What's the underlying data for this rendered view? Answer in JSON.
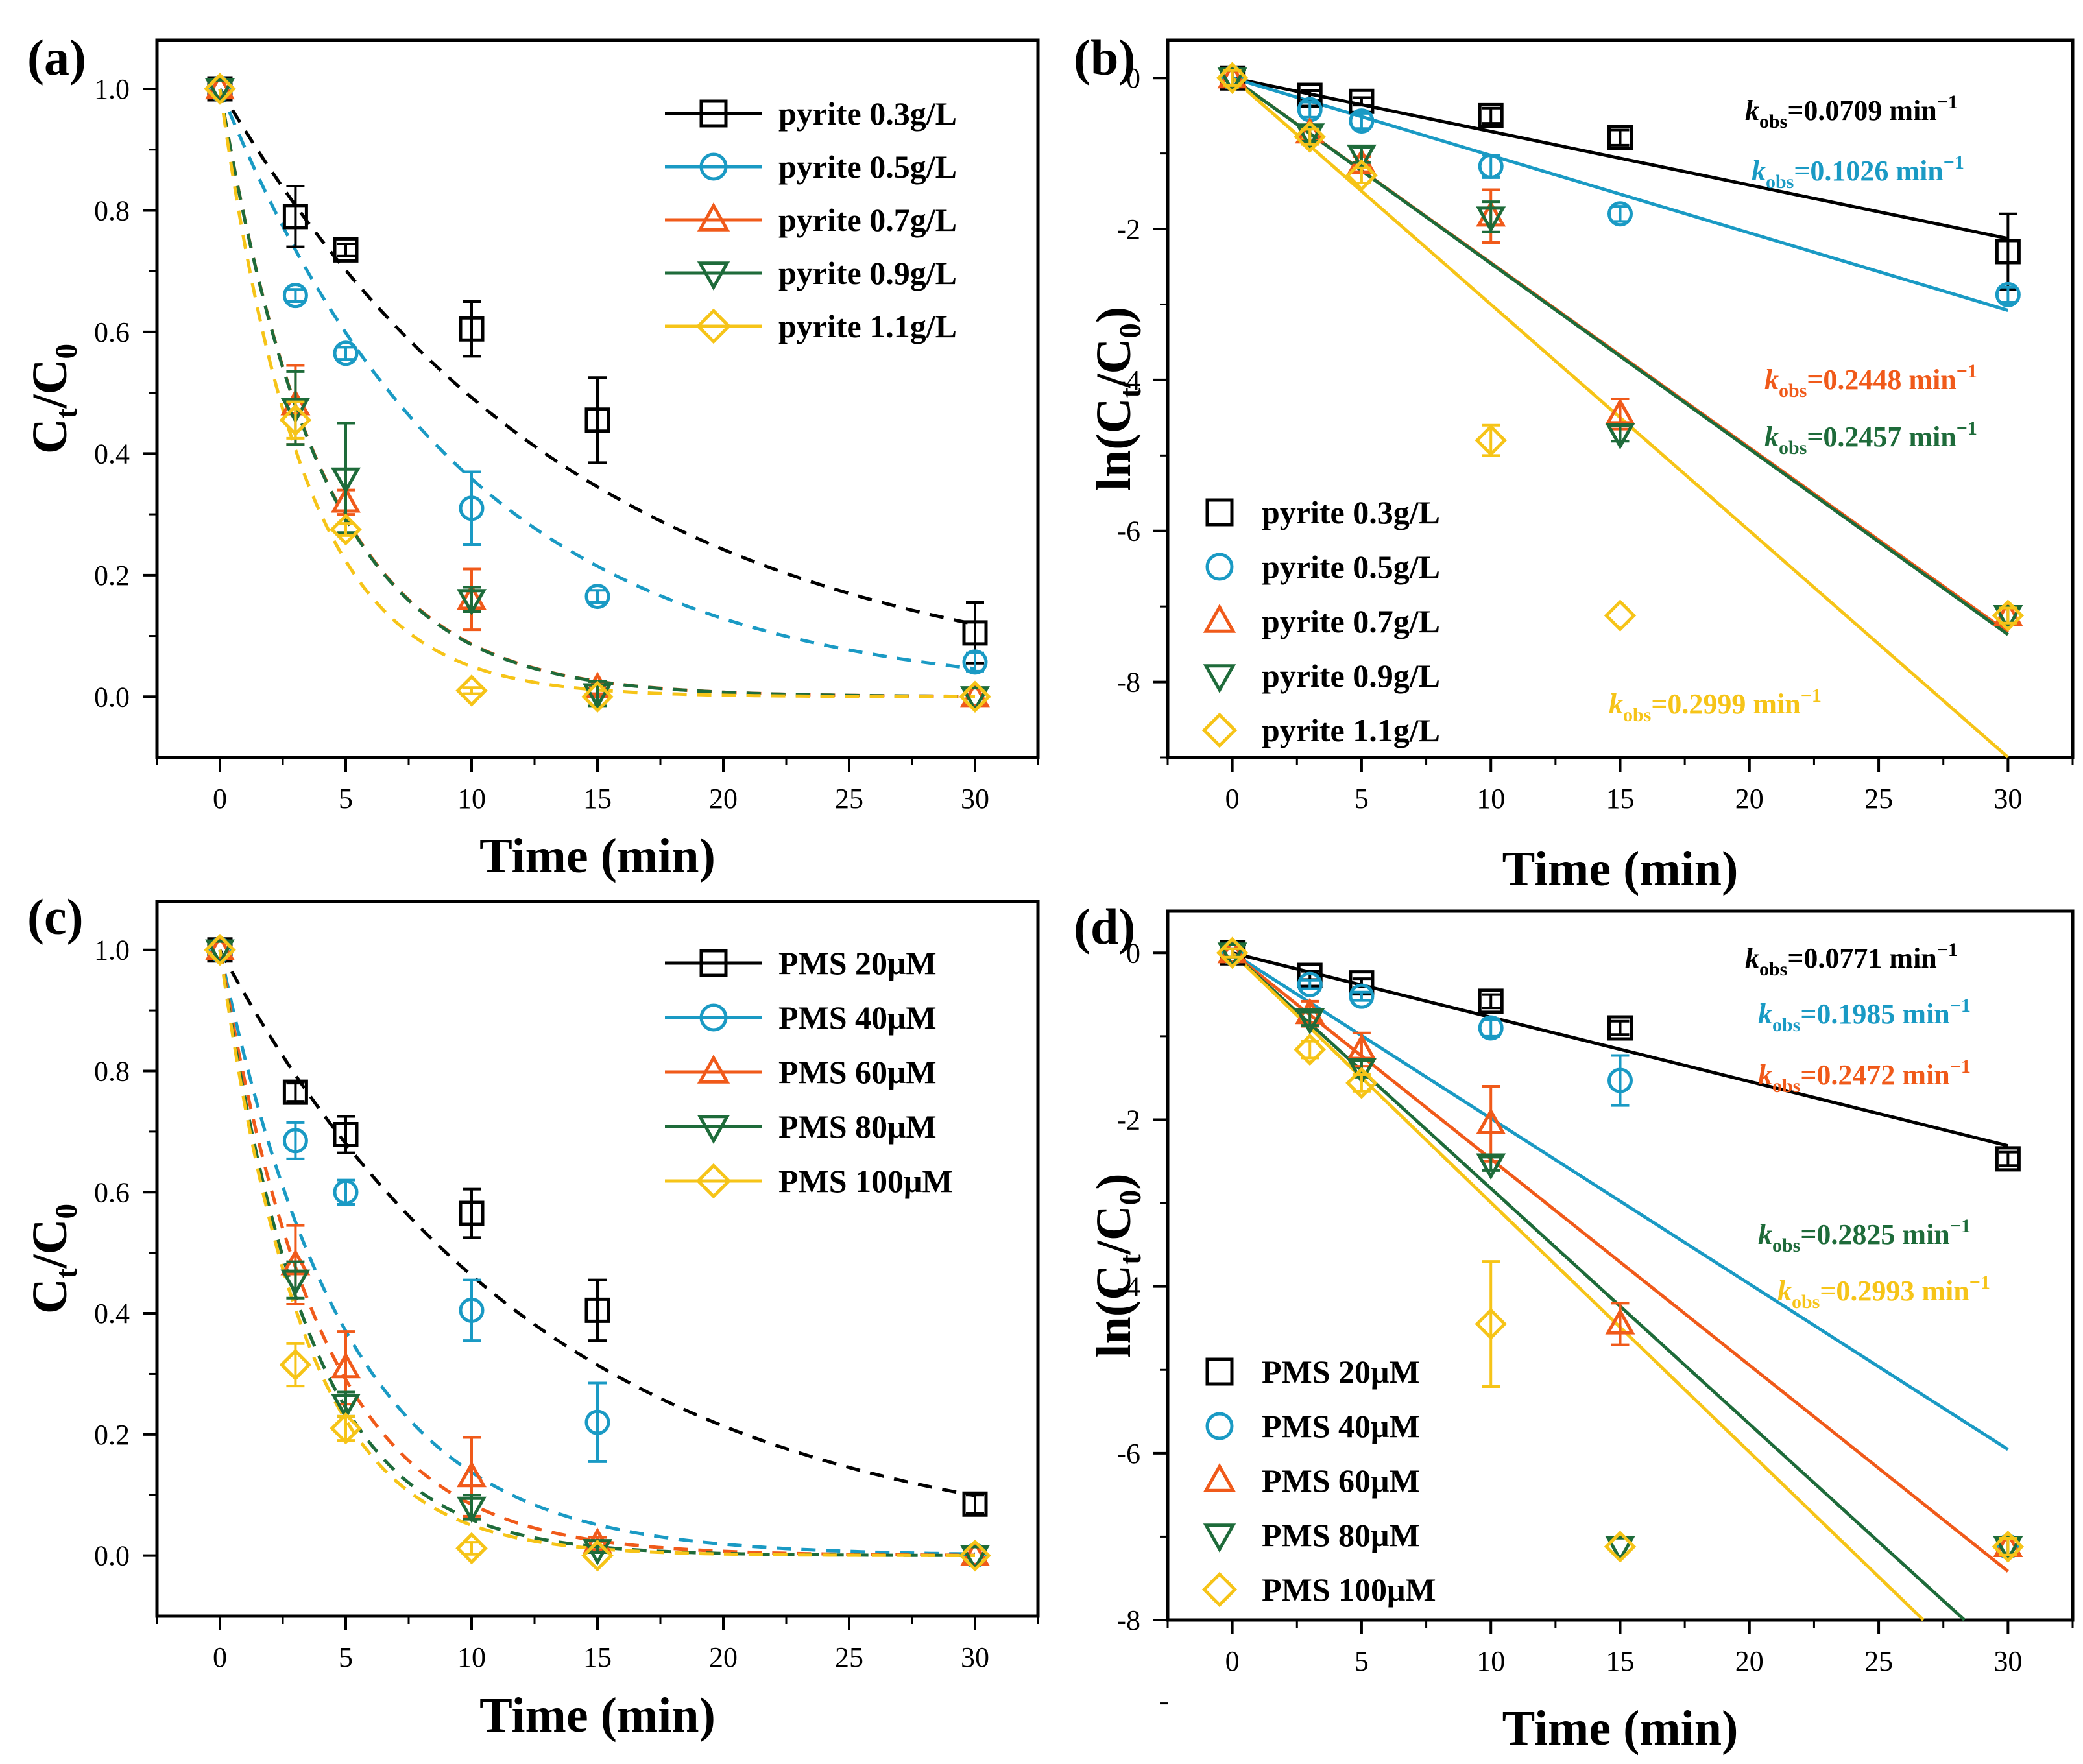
{
  "figure": {
    "colors": {
      "s0": "#000000",
      "s1": "#1a9ac4",
      "s2": "#f05a1a",
      "s3": "#1e6b3a",
      "s4": "#f6c418",
      "axis": "#000000"
    }
  },
  "chart_data": [
    {
      "panel_label": "(a)",
      "type": "line",
      "xlabel": "Time (min)",
      "ylabel": [
        "C",
        "t",
        "/C",
        "0"
      ],
      "xticks": [
        0,
        5,
        10,
        15,
        20,
        25,
        30
      ],
      "yticks": [
        0.0,
        0.2,
        0.4,
        0.6,
        0.8,
        1.0
      ],
      "xlim": [
        -2.5,
        32.5
      ],
      "ylim": [
        -0.1,
        1.08
      ],
      "ytick_decimals": 1,
      "legend_position": "top-right",
      "x": [
        0,
        3,
        5,
        10,
        15,
        30
      ],
      "series": [
        {
          "name": "pyrite 0.3g/L",
          "marker": "square",
          "values": [
            1.0,
            0.79,
            0.735,
            0.605,
            0.455,
            0.105
          ],
          "errors": [
            0.0,
            0.05,
            0.01,
            0.045,
            0.07,
            0.05
          ]
        },
        {
          "name": "pyrite 0.5g/L",
          "marker": "circle",
          "values": [
            1.0,
            0.66,
            0.565,
            0.31,
            0.165,
            0.057
          ],
          "errors": [
            0.0,
            0.01,
            0.01,
            0.06,
            0.01,
            0.015
          ]
        },
        {
          "name": "pyrite 0.7g/L",
          "marker": "triangle-up",
          "values": [
            1.0,
            0.48,
            0.32,
            0.16,
            0.015,
            0.0
          ],
          "errors": [
            0.0,
            0.065,
            0.02,
            0.05,
            0.01,
            0.0
          ]
        },
        {
          "name": "pyrite 0.9g/L",
          "marker": "triangle-down",
          "values": [
            1.0,
            0.475,
            0.36,
            0.16,
            0.005,
            0.0
          ],
          "errors": [
            0.0,
            0.06,
            0.09,
            0.02,
            0.02,
            0.0
          ]
        },
        {
          "name": "pyrite 1.1g/L",
          "marker": "diamond",
          "values": [
            1.0,
            0.455,
            0.275,
            0.01,
            0.0,
            0.0
          ],
          "errors": [
            0.0,
            0.03,
            0.01,
            0.005,
            0.0,
            0.0
          ]
        }
      ],
      "fit_curves": [
        {
          "k": 0.0709
        },
        {
          "k": 0.1026
        },
        {
          "k": 0.2448
        },
        {
          "k": 0.2457
        },
        {
          "k": 0.2999
        }
      ]
    },
    {
      "panel_label": "(b)",
      "type": "scatter",
      "xlabel": "Time (min)",
      "ylabel": [
        "ln(C",
        "t",
        "/C",
        "0",
        ")"
      ],
      "xticks": [
        0,
        5,
        10,
        15,
        20,
        25,
        30
      ],
      "yticks": [
        0,
        -2,
        -4,
        -6,
        -8
      ],
      "xlim": [
        -2.5,
        32.5
      ],
      "ylim": [
        -9.0,
        0.5
      ],
      "ytick_decimals": 0,
      "legend_position": "bottom-left",
      "x": [
        0,
        3,
        5,
        10,
        15,
        30
      ],
      "series": [
        {
          "name": "pyrite 0.3g/L",
          "marker": "square",
          "values": [
            0,
            -0.23,
            -0.31,
            -0.5,
            -0.79,
            -2.3
          ],
          "errors": [
            0.1,
            0.06,
            0.05,
            0.1,
            0.1,
            0.5
          ]
        },
        {
          "name": "pyrite 0.5g/L",
          "marker": "circle",
          "values": [
            0,
            -0.42,
            -0.57,
            -1.17,
            -1.8,
            -2.87
          ],
          "errors": [
            0.1,
            0.1,
            0.1,
            0.15,
            0.1,
            0.1
          ]
        },
        {
          "name": "pyrite 0.7g/L",
          "marker": "triangle-up",
          "values": [
            0,
            -0.73,
            -1.14,
            -1.83,
            -4.45,
            -7.12
          ],
          "errors": [
            0.1,
            0.1,
            0.1,
            0.35,
            0.2,
            0.1
          ]
        },
        {
          "name": "pyrite 0.9g/L",
          "marker": "triangle-down",
          "values": [
            0,
            -0.74,
            -1.02,
            -1.84,
            -4.71,
            -7.12
          ],
          "errors": [
            0.1,
            0.1,
            0.1,
            0.2,
            0.1,
            0.1
          ]
        },
        {
          "name": "pyrite 1.1g/L",
          "marker": "diamond",
          "values": [
            0,
            -0.78,
            -1.29,
            -4.8,
            -7.12,
            -7.12
          ],
          "errors": [
            0.1,
            0.1,
            0.1,
            0.2,
            0.0,
            0.1
          ]
        }
      ],
      "fit_lines": [
        {
          "slope": -0.0709,
          "label": "=0.0709 min"
        },
        {
          "slope": -0.1026,
          "label": "=0.1026 min"
        },
        {
          "slope": -0.2448,
          "label": "=0.2448 min"
        },
        {
          "slope": -0.2457,
          "label": "=0.2457 min"
        },
        {
          "slope": -0.2999,
          "label": "=0.2999 min"
        }
      ],
      "k_prefix": "k",
      "k_sub": "obs",
      "k_unit_exp": "−1"
    },
    {
      "panel_label": "(c)",
      "type": "line",
      "xlabel": "Time (min)",
      "ylabel": [
        "C",
        "t",
        "/C",
        "0"
      ],
      "xticks": [
        0,
        5,
        10,
        15,
        20,
        25,
        30
      ],
      "yticks": [
        0.0,
        0.2,
        0.4,
        0.6,
        0.8,
        1.0
      ],
      "xlim": [
        -2.5,
        32.5
      ],
      "ylim": [
        -0.1,
        1.08
      ],
      "ytick_decimals": 1,
      "legend_position": "top-right",
      "x": [
        0,
        3,
        5,
        10,
        15,
        30
      ],
      "series": [
        {
          "name": "PMS 20μM",
          "marker": "square",
          "values": [
            1.0,
            0.765,
            0.695,
            0.565,
            0.405,
            0.085
          ],
          "errors": [
            0.0,
            0.015,
            0.03,
            0.04,
            0.05,
            0.015
          ]
        },
        {
          "name": "PMS 40μM",
          "marker": "circle",
          "values": [
            1.0,
            0.685,
            0.6,
            0.405,
            0.22,
            0.0
          ],
          "errors": [
            0.0,
            0.03,
            0.02,
            0.05,
            0.065,
            0.0
          ]
        },
        {
          "name": "PMS 60μM",
          "marker": "triangle-up",
          "values": [
            1.0,
            0.48,
            0.31,
            0.13,
            0.02,
            0.0
          ],
          "errors": [
            0.0,
            0.065,
            0.06,
            0.065,
            0.01,
            0.0
          ]
        },
        {
          "name": "PMS 80μM",
          "marker": "triangle-down",
          "values": [
            1.0,
            0.455,
            0.25,
            0.08,
            0.01,
            0.0
          ],
          "errors": [
            0.0,
            0.03,
            0.02,
            0.02,
            0.005,
            0.0
          ]
        },
        {
          "name": "PMS 100μM",
          "marker": "diamond",
          "values": [
            1.0,
            0.315,
            0.21,
            0.012,
            0.0,
            0.0
          ],
          "errors": [
            0.0,
            0.035,
            0.02,
            0.01,
            0.0,
            0.0
          ]
        }
      ],
      "fit_curves": [
        {
          "k": 0.0771
        },
        {
          "k": 0.1985
        },
        {
          "k": 0.2472
        },
        {
          "k": 0.2825
        },
        {
          "k": 0.2993
        }
      ]
    },
    {
      "panel_label": "(d)",
      "type": "scatter",
      "xlabel": "Time (min)",
      "ylabel": [
        "ln(C",
        "t",
        "/C",
        "0",
        ")"
      ],
      "xticks": [
        0,
        5,
        10,
        15,
        20,
        25,
        30
      ],
      "yticks": [
        0,
        -2,
        -4,
        -6,
        -8
      ],
      "xlim": [
        -2.5,
        32.5
      ],
      "ylim": [
        -8.0,
        0.5
      ],
      "ytick_decimals": 0,
      "legend_position": "bottom-left",
      "x": [
        0,
        3,
        5,
        10,
        15,
        30
      ],
      "series": [
        {
          "name": "PMS 20μM",
          "marker": "square",
          "values": [
            0,
            -0.27,
            -0.36,
            -0.58,
            -0.9,
            -2.47
          ],
          "errors": [
            0.05,
            0.05,
            0.05,
            0.08,
            0.08,
            0.08
          ]
        },
        {
          "name": "PMS 40μM",
          "marker": "circle",
          "values": [
            0,
            -0.38,
            -0.52,
            -0.9,
            -1.53,
            -7.12
          ],
          "errors": [
            0.05,
            0.05,
            0.05,
            0.1,
            0.3,
            0.1
          ]
        },
        {
          "name": "PMS 60μM",
          "marker": "triangle-up",
          "values": [
            0,
            -0.73,
            -1.16,
            -2.05,
            -4.45,
            -7.12
          ],
          "errors": [
            0.05,
            0.15,
            0.2,
            0.45,
            0.25,
            0.1
          ]
        },
        {
          "name": "PMS 80μM",
          "marker": "triangle-down",
          "values": [
            0,
            -0.79,
            -1.39,
            -2.53,
            -7.12,
            -7.12
          ],
          "errors": [
            0.05,
            0.08,
            0.1,
            0.08,
            0.0,
            0.1
          ]
        },
        {
          "name": "PMS 100μM",
          "marker": "diamond",
          "values": [
            0,
            -1.16,
            -1.56,
            -4.45,
            -7.12,
            -7.12
          ],
          "errors": [
            0.05,
            0.1,
            0.1,
            0.75,
            0.0,
            0.1
          ]
        }
      ],
      "fit_lines": [
        {
          "slope": -0.0771,
          "label": "=0.0771 min"
        },
        {
          "slope": -0.1985,
          "label": "=0.1985 min"
        },
        {
          "slope": -0.2472,
          "label": "=0.2472 min"
        },
        {
          "slope": -0.2825,
          "label": "=0.2825 min"
        },
        {
          "slope": -0.2993,
          "label": "=0.2993 min"
        }
      ],
      "k_prefix": "k",
      "k_sub": "obs",
      "k_unit_exp": "−1"
    }
  ]
}
